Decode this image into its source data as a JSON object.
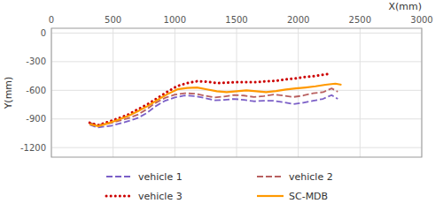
{
  "chart_data": {
    "type": "line",
    "xlabel": "X(mm)",
    "ylabel": "Y(mm)",
    "xlim": [
      0,
      3000
    ],
    "ylim": [
      -1300,
      50
    ],
    "xticks": [
      0,
      500,
      1000,
      1500,
      2000,
      2500,
      3000
    ],
    "yticks": [
      0,
      -300,
      -600,
      -900,
      -1200
    ],
    "grid": true,
    "legend": "bottom",
    "series": [
      {
        "name": "vehicle 1",
        "color": "#7b5fc7",
        "line_style": "dashed",
        "x": [
          310,
          370,
          430,
          490,
          560,
          630,
          700,
          770,
          840,
          920,
          1000,
          1080,
          1160,
          1240,
          1320,
          1400,
          1480,
          1560,
          1640,
          1720,
          1800,
          1880,
          1960,
          2040,
          2120,
          2200,
          2270,
          2320
        ],
        "values": [
          -960,
          -990,
          -980,
          -970,
          -945,
          -920,
          -890,
          -840,
          -770,
          -710,
          -675,
          -655,
          -660,
          -680,
          -705,
          -700,
          -690,
          -700,
          -715,
          -710,
          -710,
          -725,
          -745,
          -730,
          -710,
          -690,
          -650,
          -690
        ]
      },
      {
        "name": "vehicle 2",
        "color": "#b86060",
        "line_style": "dashed",
        "x": [
          310,
          370,
          430,
          490,
          560,
          630,
          700,
          770,
          840,
          920,
          1000,
          1080,
          1160,
          1240,
          1320,
          1400,
          1480,
          1560,
          1640,
          1720,
          1800,
          1880,
          1960,
          2040,
          2120,
          2200,
          2270,
          2320
        ],
        "values": [
          -940,
          -965,
          -955,
          -940,
          -915,
          -890,
          -855,
          -800,
          -735,
          -680,
          -645,
          -630,
          -635,
          -655,
          -675,
          -665,
          -650,
          -655,
          -670,
          -660,
          -645,
          -655,
          -670,
          -655,
          -630,
          -620,
          -580,
          -615
        ]
      },
      {
        "name": "vehicle 3",
        "color": "#cc0000",
        "line_style": "dotted",
        "x": [
          310,
          380,
          460,
          540,
          620,
          700,
          780,
          860,
          940,
          1020,
          1100,
          1180,
          1260,
          1340,
          1420,
          1500,
          1580,
          1660,
          1740,
          1820,
          1900,
          1980,
          2060,
          2140,
          2210,
          2260
        ],
        "values": [
          -940,
          -965,
          -930,
          -895,
          -855,
          -800,
          -745,
          -680,
          -615,
          -555,
          -525,
          -505,
          -510,
          -525,
          -520,
          -515,
          -515,
          -515,
          -505,
          -500,
          -485,
          -475,
          -460,
          -450,
          -435,
          -425
        ]
      },
      {
        "name": "SC-MDB",
        "color": "#ff9900",
        "line_style": "solid",
        "x": [
          310,
          380,
          460,
          540,
          620,
          700,
          780,
          860,
          940,
          1020,
          1100,
          1180,
          1260,
          1340,
          1420,
          1500,
          1580,
          1660,
          1740,
          1820,
          1900,
          1980,
          2060,
          2140,
          2220,
          2300,
          2350
        ],
        "values": [
          -955,
          -975,
          -945,
          -910,
          -870,
          -820,
          -765,
          -700,
          -640,
          -590,
          -575,
          -570,
          -590,
          -610,
          -620,
          -610,
          -600,
          -610,
          -620,
          -608,
          -592,
          -580,
          -570,
          -558,
          -542,
          -530,
          -542
        ]
      }
    ]
  }
}
